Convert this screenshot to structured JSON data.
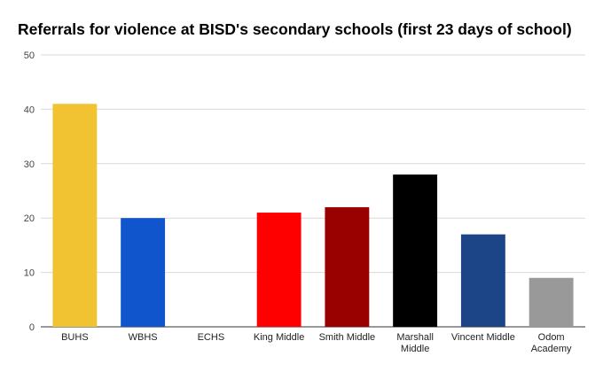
{
  "chart_data": {
    "type": "bar",
    "title": "Referrals for violence at BISD's secondary schools (first 23 days of school)",
    "xlabel": "",
    "ylabel": "",
    "ylim": [
      0,
      50
    ],
    "yticks": [
      0,
      10,
      20,
      30,
      40,
      50
    ],
    "grid": true,
    "legend": "none",
    "categories": [
      [
        "BUHS"
      ],
      [
        "WBHS"
      ],
      [
        "ECHS"
      ],
      [
        "King Middle"
      ],
      [
        "Smith Middle"
      ],
      [
        "Marshall",
        "Middle"
      ],
      [
        "Vincent Middle"
      ],
      [
        "Odom",
        "Academy"
      ]
    ],
    "values": [
      41,
      20,
      0,
      21,
      22,
      28,
      17,
      9
    ],
    "colors": [
      "#f1c232",
      "#1155cc",
      "#cccccc",
      "#ff0000",
      "#990000",
      "#000000",
      "#1c4587",
      "#999999"
    ]
  }
}
